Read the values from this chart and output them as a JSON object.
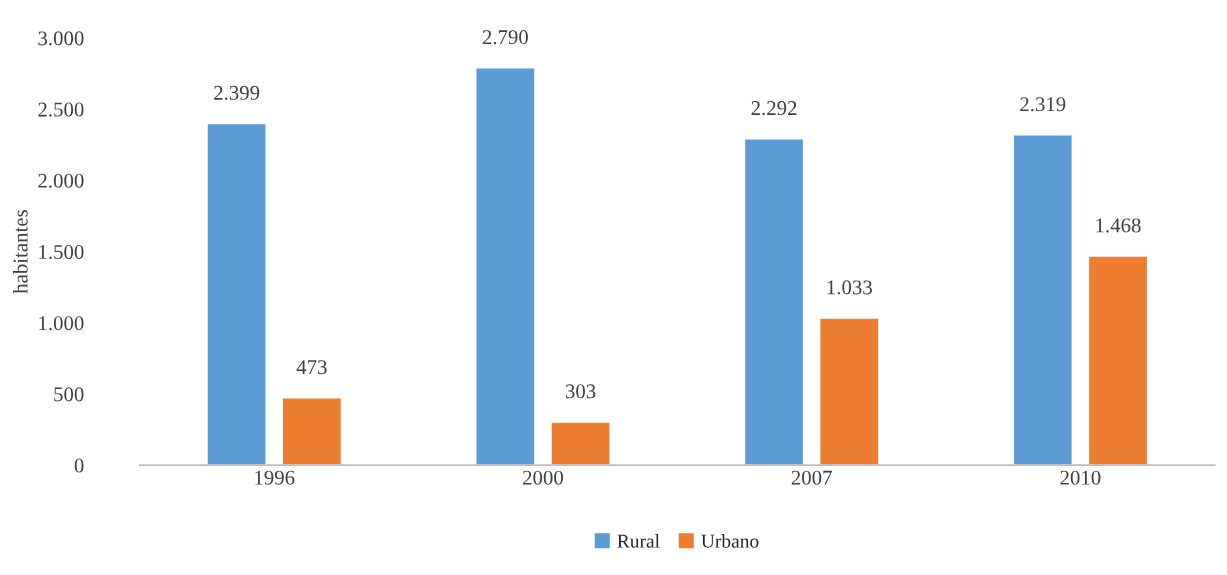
{
  "chart_data": {
    "type": "bar",
    "ylabel": "habitantes",
    "categories": [
      "1996",
      "2000",
      "2007",
      "2010"
    ],
    "series": [
      {
        "name": "Rural",
        "color": "#5b9bd5",
        "values": [
          2399,
          2790,
          2292,
          2319
        ],
        "value_labels": [
          "2.399",
          "2.790",
          "2.292",
          "2.319"
        ]
      },
      {
        "name": "Urbano",
        "color": "#ed7d31",
        "values": [
          473,
          303,
          1033,
          1468
        ],
        "value_labels": [
          "473",
          "303",
          "1.033",
          "1.468"
        ]
      }
    ],
    "ylim": [
      0,
      3000
    ],
    "yticks": [
      0,
      {
        "value": 500,
        "label": "500"
      },
      {
        "value": 1000,
        "label": "1.000"
      },
      {
        "value": 1500,
        "label": "1.500"
      },
      {
        "value": 2000,
        "label": "2.000"
      },
      {
        "value": 2500,
        "label": "2.500"
      },
      {
        "value": 3000,
        "label": "3.000"
      }
    ],
    "grid": false,
    "legend": "bottom"
  }
}
